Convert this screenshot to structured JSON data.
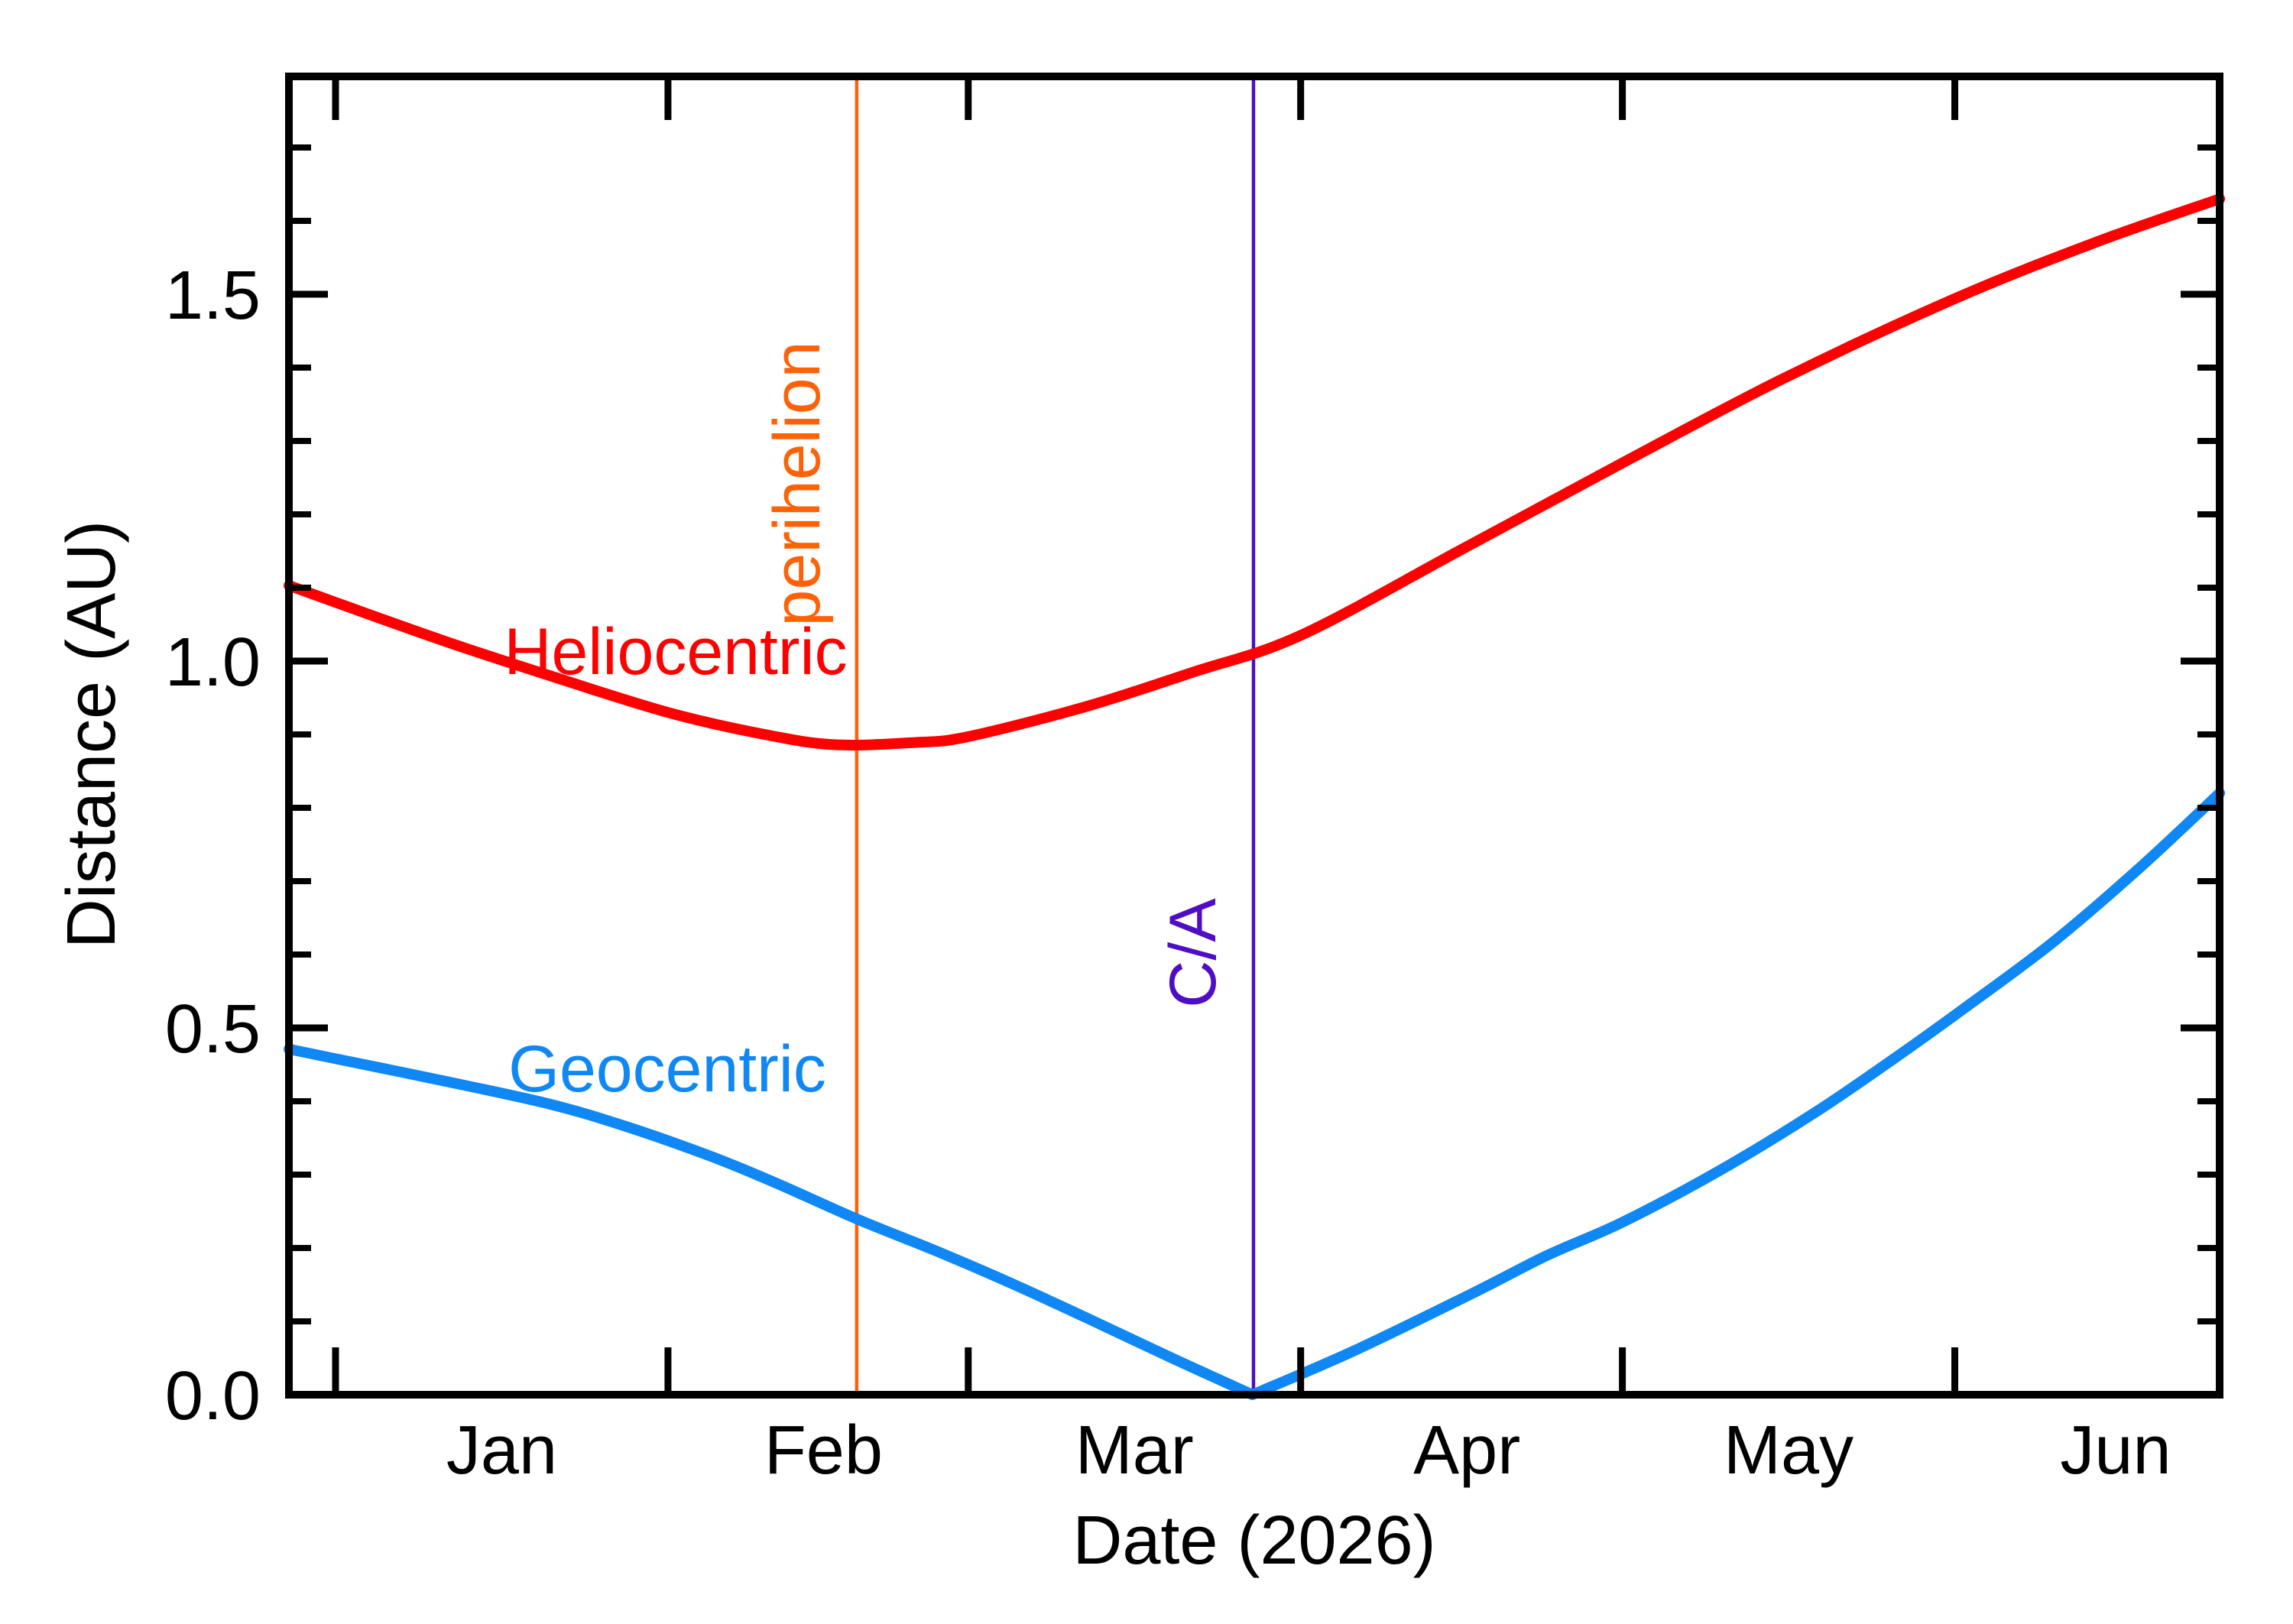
{
  "chart_data": {
    "type": "line",
    "title": "",
    "xlabel": "Date (2026)",
    "ylabel": "Distance (AU)",
    "x_unit": "days since 2026-Jan-01 (0 = Jan 1)",
    "x_range_days": [
      -4.35,
      175.7
    ],
    "ylim": [
      0.0,
      1.8
    ],
    "grid": false,
    "legend_position": "inline curve labels",
    "background_color": "#ffffff",
    "axis_color": "#000000",
    "y_major_ticks": [
      {
        "value": 0.0,
        "label": "0.0"
      },
      {
        "value": 0.5,
        "label": "0.5"
      },
      {
        "value": 1.0,
        "label": "1.0"
      },
      {
        "value": 1.5,
        "label": "1.5"
      }
    ],
    "y_minor_ticks": [
      0.1,
      0.2,
      0.3,
      0.4,
      0.6,
      0.7,
      0.8,
      0.9,
      1.1,
      1.2,
      1.3,
      1.4,
      1.6,
      1.7
    ],
    "x_month_start_tick_days": [
      0,
      31,
      59,
      90,
      120,
      151
    ],
    "x_month_labels": [
      {
        "label": "Jan",
        "d": 15.5
      },
      {
        "label": "Feb",
        "d": 45.5
      },
      {
        "label": "Mar",
        "d": 74.5
      },
      {
        "label": "Apr",
        "d": 105.5
      },
      {
        "label": "May",
        "d": 135.5
      },
      {
        "label": "Jun",
        "d": 166.0
      }
    ],
    "series": [
      {
        "name": "Heliocentric",
        "label": "Heliocentric",
        "color": "#ff0000",
        "stroke_width": 14,
        "points": [
          {
            "d": -4.35,
            "au": 1.103
          },
          {
            "d": 0,
            "au": 1.08
          },
          {
            "d": 10,
            "au": 1.028
          },
          {
            "d": 20,
            "au": 0.98
          },
          {
            "d": 31,
            "au": 0.93
          },
          {
            "d": 40,
            "au": 0.9
          },
          {
            "d": 46.5,
            "au": 0.886
          },
          {
            "d": 54,
            "au": 0.889
          },
          {
            "d": 59,
            "au": 0.897
          },
          {
            "d": 70,
            "au": 0.938
          },
          {
            "d": 80,
            "au": 0.985
          },
          {
            "d": 90,
            "au": 1.035
          },
          {
            "d": 105,
            "au": 1.152
          },
          {
            "d": 120,
            "au": 1.27
          },
          {
            "d": 135,
            "au": 1.385
          },
          {
            "d": 151,
            "au": 1.494
          },
          {
            "d": 164,
            "au": 1.57
          },
          {
            "d": 175.7,
            "au": 1.63
          }
        ]
      },
      {
        "name": "Geocentric",
        "label": "Geocentric",
        "color": "#0f87f5",
        "stroke_width": 14,
        "points": [
          {
            "d": -4.35,
            "au": 0.471
          },
          {
            "d": 0,
            "au": 0.458
          },
          {
            "d": 10,
            "au": 0.428
          },
          {
            "d": 20,
            "au": 0.396
          },
          {
            "d": 27,
            "au": 0.366
          },
          {
            "d": 35,
            "au": 0.325
          },
          {
            "d": 41,
            "au": 0.289
          },
          {
            "d": 48.7,
            "au": 0.239
          },
          {
            "d": 56,
            "au": 0.196
          },
          {
            "d": 63,
            "au": 0.152
          },
          {
            "d": 70,
            "au": 0.105
          },
          {
            "d": 78,
            "au": 0.05
          },
          {
            "d": 85.5,
            "au": 0.0,
            "vertex": true
          },
          {
            "d": 95,
            "au": 0.06
          },
          {
            "d": 106,
            "au": 0.138
          },
          {
            "d": 113,
            "au": 0.19
          },
          {
            "d": 120,
            "au": 0.235
          },
          {
            "d": 129,
            "au": 0.305
          },
          {
            "d": 138,
            "au": 0.385
          },
          {
            "d": 146,
            "au": 0.465
          },
          {
            "d": 152,
            "au": 0.528
          },
          {
            "d": 160,
            "au": 0.615
          },
          {
            "d": 168,
            "au": 0.715
          },
          {
            "d": 175.7,
            "au": 0.82
          }
        ]
      }
    ],
    "annotations": [
      {
        "name": "perihelion",
        "label": "perihelion",
        "color": "#ff6106",
        "d": 48.6,
        "approx_date": "Feb 18"
      },
      {
        "name": "close-approach",
        "label": "C/A",
        "color": "#4f0dc5",
        "d": 85.6,
        "approx_date": "Mar 27"
      }
    ]
  },
  "labels": {
    "heliocentric": "Heliocentric",
    "geocentric": "Geocentric",
    "perihelion": "perihelion",
    "close_approach": "C/A",
    "xlabel": "Date (2026)",
    "ylabel": "Distance (AU)"
  }
}
